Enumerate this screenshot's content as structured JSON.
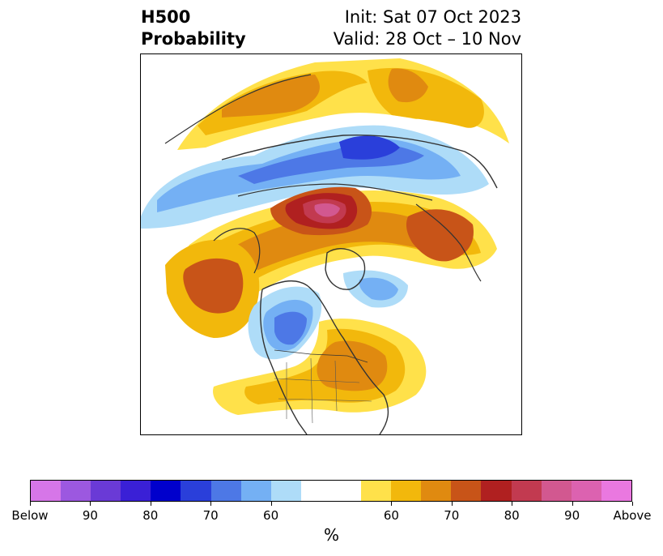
{
  "title": {
    "left_line1": "H500",
    "left_line2": "Probability",
    "right_line1": "Init: Sat 07 Oct 2023",
    "right_line2": "Valid: 28 Oct – 10 Nov"
  },
  "colorbar": {
    "unit": "%",
    "colors": [
      "#d676e8",
      "#9c58e0",
      "#6a3ad6",
      "#3a20d6",
      "#0000cc",
      "#2a3fda",
      "#4d78e6",
      "#74b0f4",
      "#aedcf8",
      "#ffffff",
      "#ffe14a",
      "#f2b80c",
      "#e08a10",
      "#c85418",
      "#b02020",
      "#c23a50",
      "#d25890",
      "#dc62b0",
      "#ea78e0"
    ],
    "tick_labels": [
      "Below",
      "90",
      "80",
      "70",
      "60",
      "60",
      "70",
      "80",
      "90",
      "Above"
    ]
  },
  "map": {
    "below_colors": {
      "p50": "#aedcf8",
      "p60": "#74b0f4",
      "p70": "#4d78e6",
      "p80": "#2a3fda",
      "p90": "#0000cc"
    },
    "above_colors": {
      "p50": "#ffe14a",
      "p60": "#f2b80c",
      "p70": "#e08a10",
      "p80": "#c85418",
      "p90": "#b02020",
      "p95": "#c23a50",
      "p99": "#d25890"
    }
  }
}
